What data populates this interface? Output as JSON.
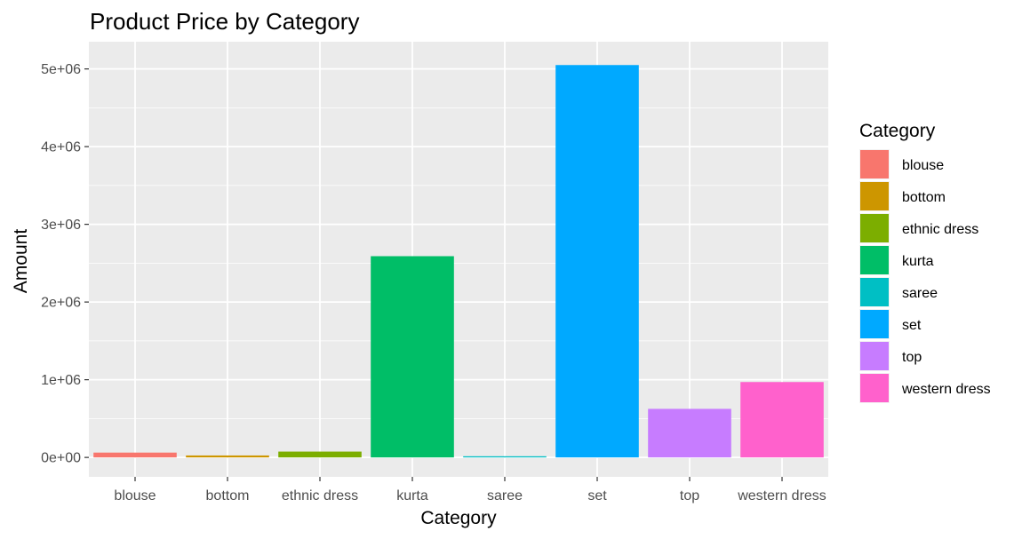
{
  "chart_data": {
    "type": "bar",
    "title": "Product Price by Category",
    "xlabel": "Category",
    "ylabel": "Amount",
    "categories": [
      "blouse",
      "bottom",
      "ethnic dress",
      "kurta",
      "saree",
      "set",
      "top",
      "western dress"
    ],
    "values": [
      62000,
      25000,
      75000,
      2590000,
      15000,
      5050000,
      625000,
      970000
    ],
    "colors": [
      "#F8766D",
      "#CD9600",
      "#7CAE00",
      "#00BE67",
      "#00BFC4",
      "#00A9FF",
      "#C77CFF",
      "#FF61CC"
    ],
    "ylim": [
      -250000,
      5350000
    ],
    "yticks": [
      0,
      1000000,
      2000000,
      3000000,
      4000000,
      5000000
    ],
    "ytick_labels": [
      "0e+00",
      "1e+06",
      "2e+06",
      "3e+06",
      "4e+06",
      "5e+06"
    ],
    "grid": true,
    "panel_background": "#EBEBEB",
    "legend": {
      "title": "Category",
      "position": "right",
      "entries": [
        "blouse",
        "bottom",
        "ethnic dress",
        "kurta",
        "saree",
        "set",
        "top",
        "western dress"
      ]
    }
  }
}
